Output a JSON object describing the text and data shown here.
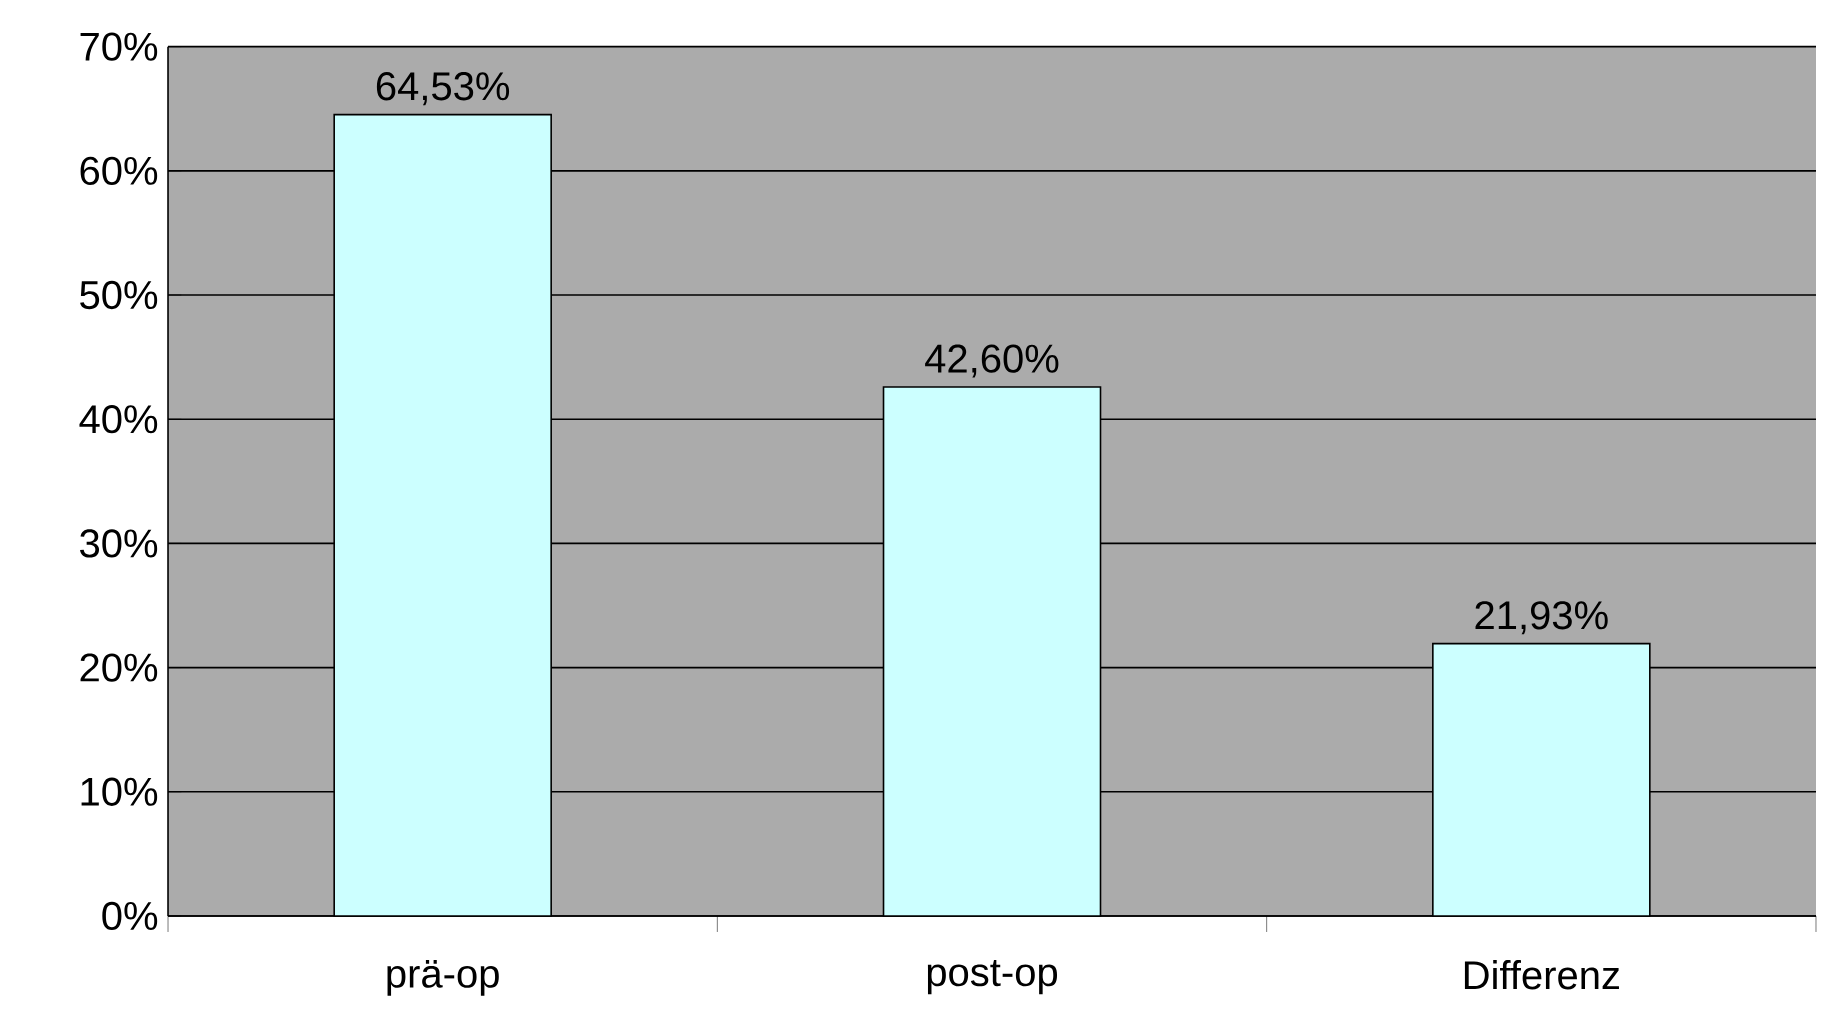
{
  "chart_data": {
    "type": "bar",
    "categories": [
      "prä-op",
      "post-op",
      "Differenz"
    ],
    "values": [
      64.53,
      42.6,
      21.93
    ],
    "color": "#ccffff",
    "value_labels": [
      "64,53%",
      "42,60%",
      "21,93%"
    ],
    "ylim": [
      0,
      70
    ],
    "yticks": [
      {
        "value": 0,
        "label": "0%"
      },
      {
        "value": 10,
        "label": "10%"
      },
      {
        "value": 20,
        "label": "20%"
      },
      {
        "value": 30,
        "label": "30%"
      },
      {
        "value": 40,
        "label": "40%"
      },
      {
        "value": 50,
        "label": "50%"
      },
      {
        "value": 60,
        "label": "60%"
      },
      {
        "value": 70,
        "label": "70%"
      }
    ],
    "grid": "y"
  }
}
